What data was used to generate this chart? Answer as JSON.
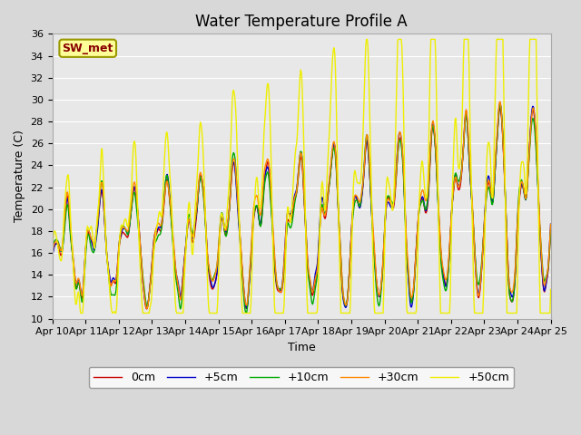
{
  "title": "Water Temperature Profile A",
  "xlabel": "Time",
  "ylabel": "Temperature (C)",
  "ylim": [
    10,
    36
  ],
  "yticks": [
    10,
    12,
    14,
    16,
    18,
    20,
    22,
    24,
    26,
    28,
    30,
    32,
    34,
    36
  ],
  "xtick_labels": [
    "Apr 10",
    "Apr 11",
    "Apr 12",
    "Apr 13",
    "Apr 14",
    "Apr 15",
    "Apr 16",
    "Apr 17",
    "Apr 18",
    "Apr 19",
    "Apr 20",
    "Apr 21",
    "Apr 22",
    "Apr 23",
    "Apr 24",
    "Apr 25"
  ],
  "legend_labels": [
    "0cm",
    "+5cm",
    "+10cm",
    "+30cm",
    "+50cm"
  ],
  "line_colors": [
    "#cc0000",
    "#0000cc",
    "#00aa00",
    "#ff8800",
    "#eeee00"
  ],
  "annotation_text": "SW_met",
  "annotation_bg": "#ffff99",
  "annotation_border": "#999900",
  "annotation_text_color": "#880000",
  "fig_bg": "#d8d8d8",
  "plot_bg": "#e8e8e8",
  "grid_color": "#ffffff",
  "title_fontsize": 12,
  "axis_fontsize": 9,
  "tick_fontsize": 8,
  "legend_fontsize": 9
}
